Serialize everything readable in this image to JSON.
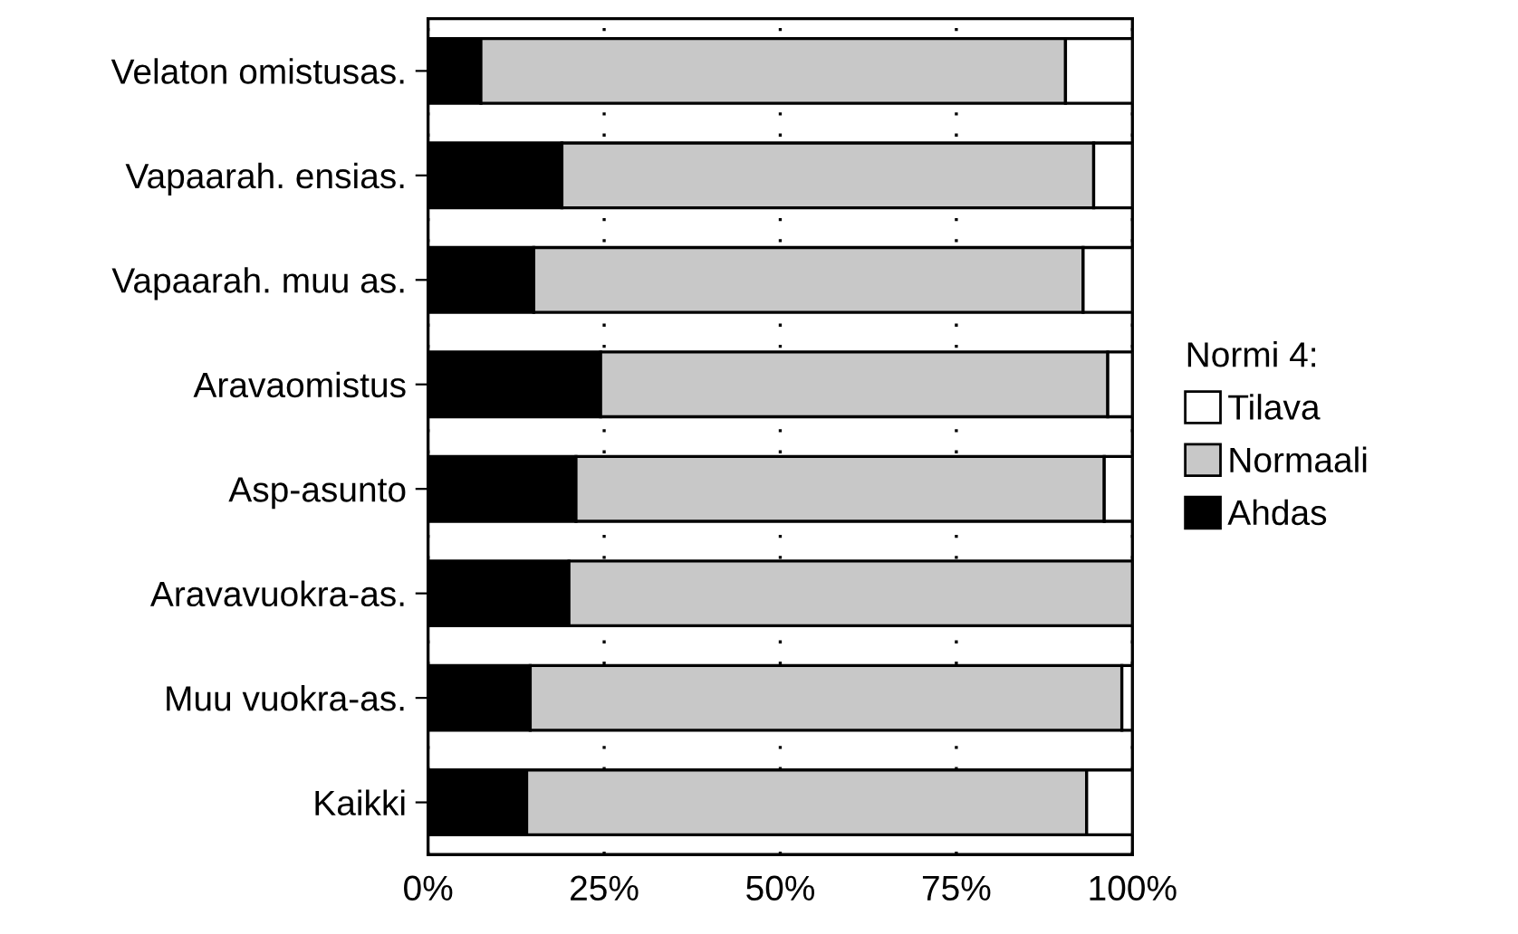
{
  "chart_data": {
    "type": "bar",
    "orientation": "horizontal",
    "stacked": true,
    "categories": [
      "Velaton omistusas.",
      "Vapaarah. ensias.",
      "Vapaarah. muu as.",
      "Aravaomistus",
      "Asp-asunto",
      "Aravavuokra-as.",
      "Muu vuokra-as.",
      "Kaikki"
    ],
    "series": [
      {
        "name": "Ahdas",
        "color": "#000000",
        "values": [
          7.5,
          19,
          15,
          24.5,
          21,
          20,
          14.5,
          14
        ]
      },
      {
        "name": "Normaali",
        "color": "#c8c8c8",
        "values": [
          83,
          75.5,
          78,
          72,
          75,
          80,
          84,
          79.5
        ]
      },
      {
        "name": "Tilava",
        "color": "#ffffff",
        "values": [
          9.5,
          5.5,
          7,
          3.5,
          4,
          null,
          1.5,
          6.5
        ]
      }
    ],
    "xlim": [
      0,
      100
    ],
    "xticks": [
      {
        "value": 0,
        "label": "0%"
      },
      {
        "value": 25,
        "label": "25%"
      },
      {
        "value": 50,
        "label": "50%"
      },
      {
        "value": 75,
        "label": "75%"
      },
      {
        "value": 100,
        "label": "100%"
      }
    ],
    "grid": "x",
    "legend": "right",
    "legend_title": "Normi 4:"
  }
}
